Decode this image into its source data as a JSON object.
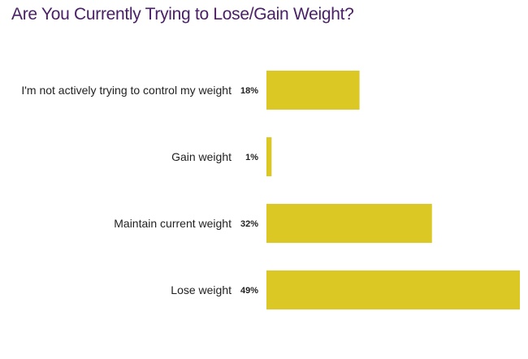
{
  "chart_data": {
    "type": "bar",
    "orientation": "horizontal",
    "title": "Are You Currently Trying to Lose/Gain Weight?",
    "categories": [
      "I'm not actively trying to control my weight",
      "Gain weight",
      "Maintain current weight",
      "Lose weight"
    ],
    "values": [
      18,
      1,
      32,
      49
    ],
    "value_labels": [
      "18%",
      "1%",
      "32%",
      "49%"
    ],
    "xlim": [
      0,
      49
    ],
    "grid": false,
    "legend": "none"
  },
  "colors": {
    "title": "#4a2166",
    "bar": "#dcc825",
    "text": "#222222",
    "background": "#ffffff"
  }
}
